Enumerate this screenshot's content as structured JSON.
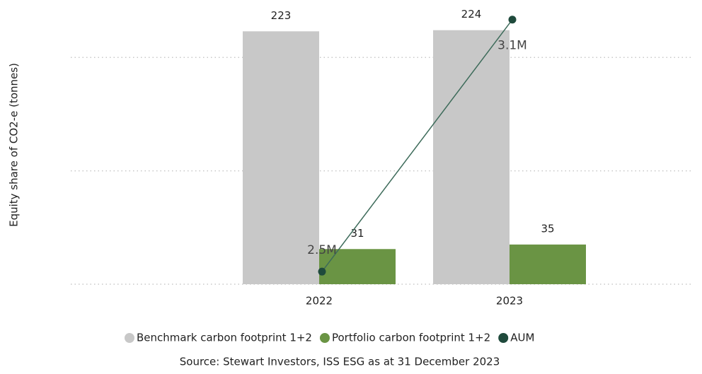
{
  "chart_data": {
    "type": "bar",
    "y_label": "Equity share of CO2-e (tonnes)",
    "categories": [
      "2022",
      "2023"
    ],
    "series": [
      {
        "name": "Benchmark carbon footprint 1+2",
        "color": "#c8c8c8",
        "values": [
          223,
          224
        ]
      },
      {
        "name": "Portfolio carbon footprint 1+2",
        "color": "#6a9444",
        "values": [
          31,
          35
        ]
      },
      {
        "name": "AUM",
        "color": "#1f4a3c",
        "type": "line",
        "axis": "y2",
        "values": [
          2500000,
          3100000
        ],
        "value_labels": [
          "2.5M",
          "3.1M"
        ]
      }
    ],
    "ylim": [
      0,
      250
    ],
    "yticks": [
      0,
      100,
      200
    ],
    "grid": true,
    "y2lim": [
      2470000,
      3145000
    ],
    "legend": "bottom",
    "source": "Source: Stewart Investors, ISS ESG as at 31 December 2023"
  }
}
